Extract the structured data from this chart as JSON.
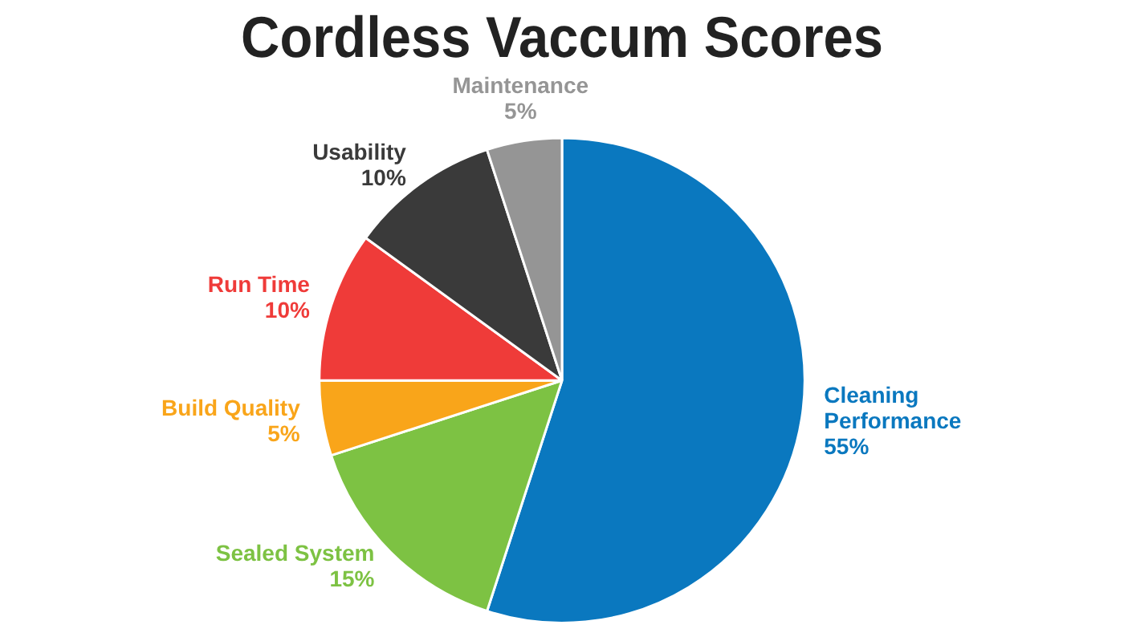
{
  "chart_data": {
    "type": "pie",
    "title": "Cordless Vaccum Scores",
    "categories": [
      "Cleaning Performance",
      "Sealed System",
      "Build Quality",
      "Run Time",
      "Usability",
      "Maintenance"
    ],
    "values": [
      55,
      15,
      5,
      10,
      10,
      5
    ],
    "value_labels": [
      "55%",
      "15%",
      "5%",
      "10%",
      "10%",
      "5%"
    ],
    "colors": [
      "#0a78bf",
      "#7dc243",
      "#f9a51a",
      "#ef3b39",
      "#3a3a3a",
      "#959595"
    ],
    "legend": false
  }
}
